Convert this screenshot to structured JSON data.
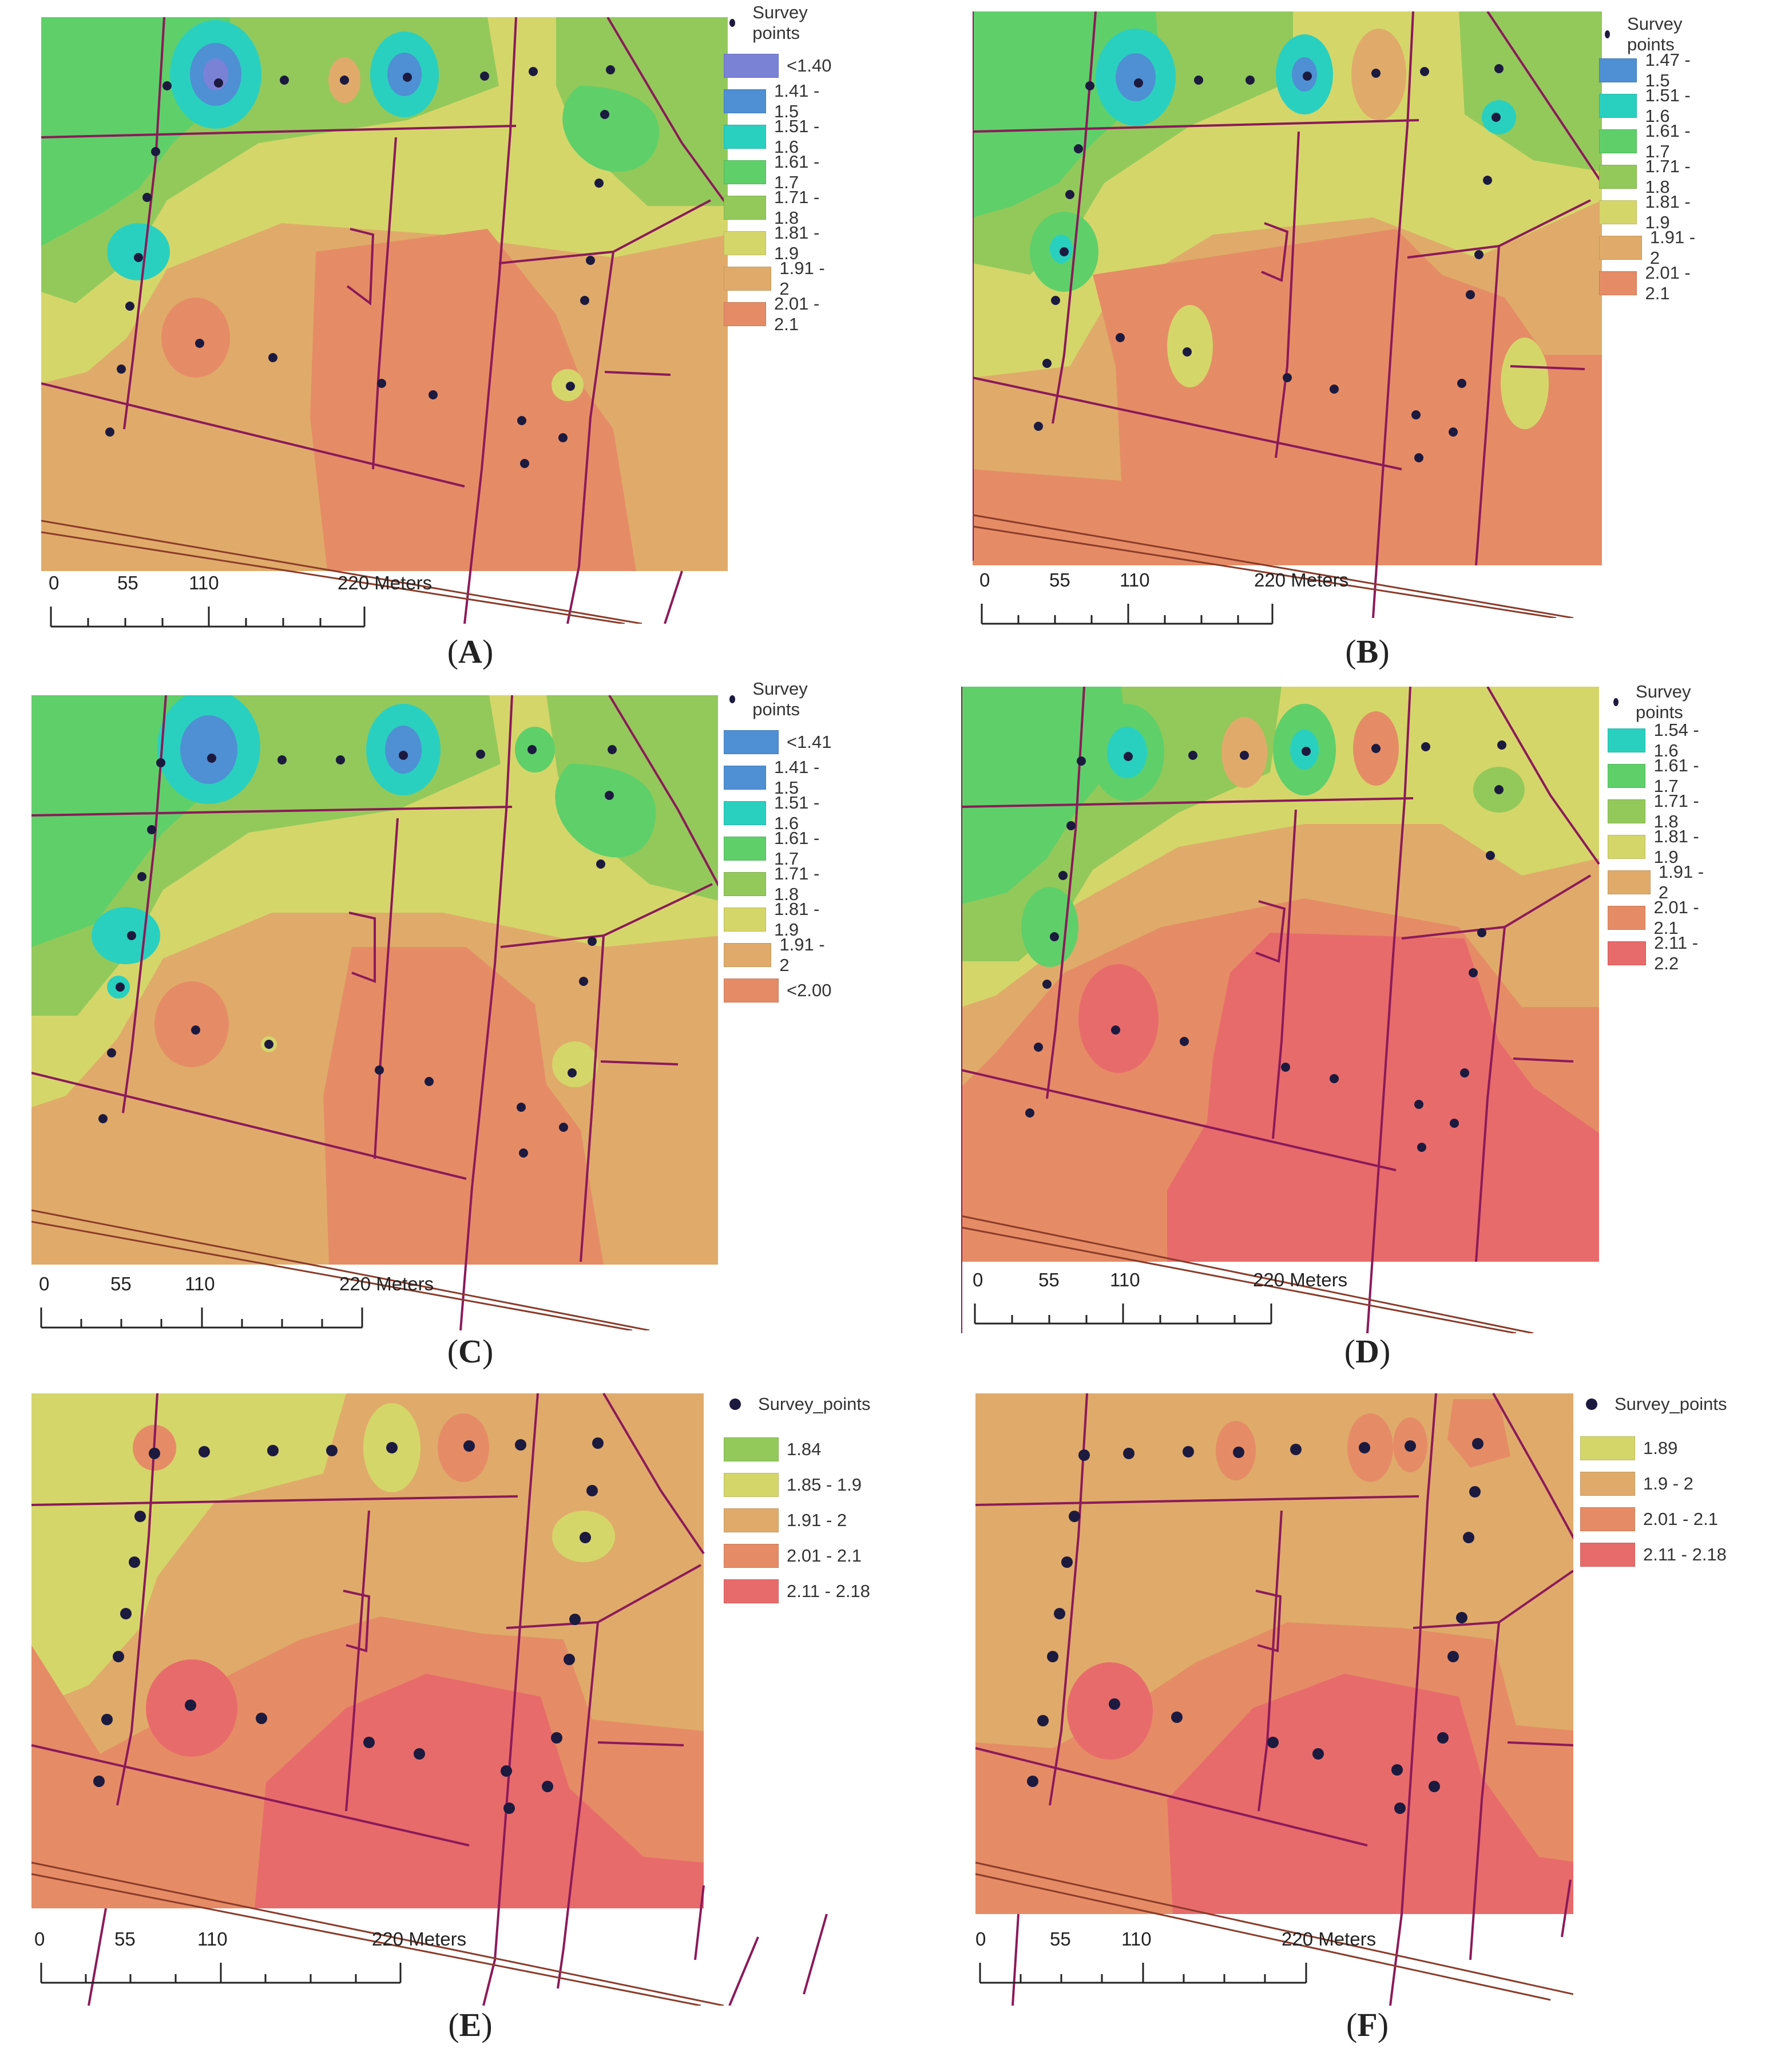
{
  "colors": {
    "c140": "#7a82d6",
    "c141": "#4f8fd3",
    "c151": "#2ad0bf",
    "c161": "#5fcf6a",
    "c171": "#93c95a",
    "c181": "#d5d66a",
    "c191": "#e0ab6a",
    "c201": "#e58c66",
    "c211": "#e86b6b",
    "road": "#8b1a5a",
    "rail": "#8a3b2a",
    "point": "#1c1a3f"
  },
  "panels": [
    {
      "id": "A",
      "label_open": "(",
      "label": "A",
      "label_close": ")",
      "legend_title": "Survey  points",
      "legend": [
        {
          "label": "<1.40",
          "color": "#7a82d6"
        },
        {
          "label": "1.41 - 1.5",
          "color": "#4f8fd3"
        },
        {
          "label": "1.51 - 1.6",
          "color": "#2ad0bf"
        },
        {
          "label": "1.61 - 1.7",
          "color": "#5fcf6a"
        },
        {
          "label": "1.71 - 1.8",
          "color": "#93c95a"
        },
        {
          "label": "1.81 - 1.9",
          "color": "#d5d66a"
        },
        {
          "label": "1.91 - 2",
          "color": "#e0ab6a"
        },
        {
          "label": "2.01 - 2.1",
          "color": "#e58c66"
        }
      ],
      "scale": {
        "t0": "0",
        "t1": "55",
        "t2": "110",
        "t3": "220 Meters"
      }
    },
    {
      "id": "B",
      "label_open": "(",
      "label": "B",
      "label_close": ")",
      "legend_title": "Survey  points",
      "legend": [
        {
          "label": "1.47 - 1.5",
          "color": "#4f8fd3"
        },
        {
          "label": "1.51 - 1.6",
          "color": "#2ad0bf"
        },
        {
          "label": "1.61 - 1.7",
          "color": "#5fcf6a"
        },
        {
          "label": "1.71 - 1.8",
          "color": "#93c95a"
        },
        {
          "label": "1.81 - 1.9",
          "color": "#d5d66a"
        },
        {
          "label": "1.91 - 2",
          "color": "#e0ab6a"
        },
        {
          "label": "2.01 - 2.1",
          "color": "#e58c66"
        }
      ],
      "scale": {
        "t0": "0",
        "t1": "55",
        "t2": "110",
        "t3": "220 Meters"
      }
    },
    {
      "id": "C",
      "label_open": "(",
      "label": "C",
      "label_close": ")",
      "legend_title": "Survey  points",
      "legend": [
        {
          "label": "<1.41",
          "color": "#4f8fd3"
        },
        {
          "label": "1.41 - 1.5",
          "color": "#4f8fd3"
        },
        {
          "label": "1.51 - 1.6",
          "color": "#2ad0bf"
        },
        {
          "label": "1.61 - 1.7",
          "color": "#5fcf6a"
        },
        {
          "label": "1.71 - 1.8",
          "color": "#93c95a"
        },
        {
          "label": "1.81 - 1.9",
          "color": "#d5d66a"
        },
        {
          "label": "1.91 - 2",
          "color": "#e0ab6a"
        },
        {
          "label": "<2.00",
          "color": "#e58c66"
        }
      ],
      "scale": {
        "t0": "0",
        "t1": "55",
        "t2": "110",
        "t3": "220 Meters"
      }
    },
    {
      "id": "D",
      "label_open": "(",
      "label": "D",
      "label_close": ")",
      "legend_title": "Survey  points",
      "legend": [
        {
          "label": "1.54 - 1.6",
          "color": "#2ad0bf"
        },
        {
          "label": "1.61 - 1.7",
          "color": "#5fcf6a"
        },
        {
          "label": "1.71 - 1.8",
          "color": "#93c95a"
        },
        {
          "label": "1.81 - 1.9",
          "color": "#d5d66a"
        },
        {
          "label": "1.91 - 2",
          "color": "#e0ab6a"
        },
        {
          "label": "2.01 - 2.1",
          "color": "#e58c66"
        },
        {
          "label": "2.11 - 2.2",
          "color": "#e86b6b"
        }
      ],
      "scale": {
        "t0": "0",
        "t1": "55",
        "t2": "110",
        "t3": "220 Meters"
      }
    },
    {
      "id": "E",
      "label_open": "(",
      "label": "E",
      "label_close": ")",
      "legend_title": "Survey_points",
      "legend": [
        {
          "label": "1.84",
          "color": "#93c95a"
        },
        {
          "label": "1.85 - 1.9",
          "color": "#d5d66a"
        },
        {
          "label": "1.91 - 2",
          "color": "#e0ab6a"
        },
        {
          "label": "2.01 - 2.1",
          "color": "#e58c66"
        },
        {
          "label": "2.11 - 2.18",
          "color": "#e86b6b"
        }
      ],
      "scale": {
        "t0": "0",
        "t1": "55",
        "t2": "110",
        "t3": "220 Meters"
      }
    },
    {
      "id": "F",
      "label_open": "(",
      "label": "F",
      "label_close": ")",
      "legend_title": "Survey_points",
      "legend": [
        {
          "label": "1.89",
          "color": "#d5d66a"
        },
        {
          "label": "1.9 - 2",
          "color": "#e0ab6a"
        },
        {
          "label": "2.01 - 2.1",
          "color": "#e58c66"
        },
        {
          "label": "2.11 - 2.18",
          "color": "#e86b6b"
        }
      ],
      "scale": {
        "t0": "0",
        "t1": "55",
        "t2": "110",
        "t3": "220 Meters"
      }
    }
  ]
}
